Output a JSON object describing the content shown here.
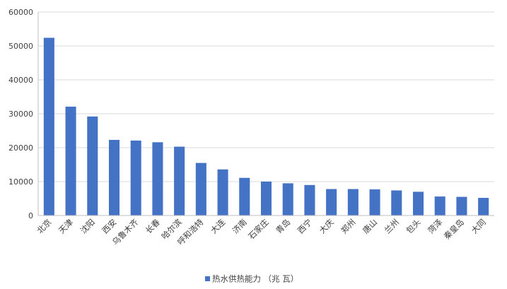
{
  "chart_data": {
    "type": "bar",
    "categories": [
      "北京",
      "天津",
      "沈阳",
      "西安",
      "乌鲁木齐",
      "长春",
      "哈尔滨",
      "呼和浩特",
      "大连",
      "济南",
      "石家庄",
      "青岛",
      "西宁",
      "大庆",
      "郑州",
      "唐山",
      "兰州",
      "包头",
      "菏泽",
      "秦皇岛",
      "大同"
    ],
    "series": [
      {
        "name": "热水供热能力 （兆 瓦）",
        "values": [
          52400,
          32100,
          29200,
          22300,
          22100,
          21600,
          20300,
          15500,
          13600,
          11100,
          10000,
          9500,
          9000,
          7800,
          7800,
          7700,
          7400,
          7000,
          5600,
          5500,
          5200
        ],
        "color": "#4472C4"
      }
    ],
    "ylim": [
      0,
      60000
    ],
    "yticks": [
      0,
      10000,
      20000,
      30000,
      40000,
      50000,
      60000
    ],
    "grid": true,
    "legend": "bottom-center"
  }
}
